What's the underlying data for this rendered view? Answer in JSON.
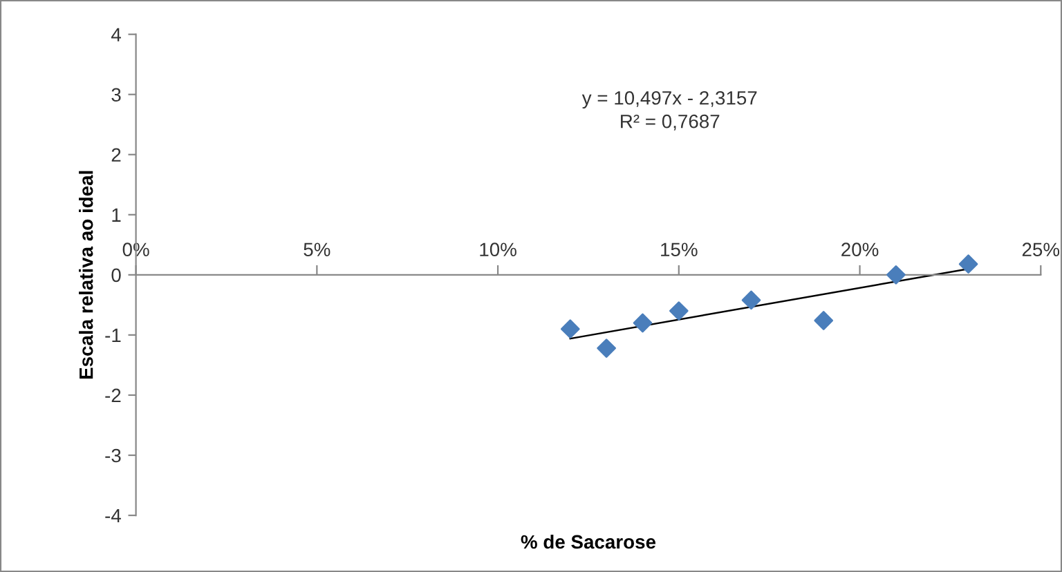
{
  "chart_data": {
    "type": "scatter",
    "xlabel": "% de Sacarose",
    "ylabel": "Escala relativa ao ideal",
    "annotations": [
      "y = 10,497x - 2,3157\nR² = 0,7687"
    ],
    "series": [
      {
        "type": "scatter",
        "color": "#4a7ebb",
        "marker": "diamond",
        "x": [
          0.12,
          0.13,
          0.14,
          0.15,
          0.17,
          0.19,
          0.21,
          0.23
        ],
        "values": [
          -0.9,
          -1.22,
          -0.8,
          -0.6,
          -0.42,
          -0.76,
          0.0,
          0.18
        ]
      },
      {
        "type": "line",
        "color": "#000000",
        "marker": "none",
        "x": [
          0.12,
          0.23
        ],
        "values": [
          -1.06,
          0.1
        ]
      }
    ],
    "xlim": [
      0,
      0.25
    ],
    "xticks": [
      {
        "value": 0,
        "label": "0%"
      },
      {
        "value": 0.05,
        "label": "5%"
      },
      {
        "value": 0.1,
        "label": "10%"
      },
      {
        "value": 0.15,
        "label": "15%"
      },
      {
        "value": 0.2,
        "label": "20%"
      },
      {
        "value": 0.25,
        "label": "25%"
      }
    ],
    "ylim": [
      -4,
      4
    ],
    "yticks": [
      -4,
      -3,
      -2,
      -1,
      0,
      1,
      2,
      3,
      4
    ],
    "grid": false,
    "legend": false
  }
}
